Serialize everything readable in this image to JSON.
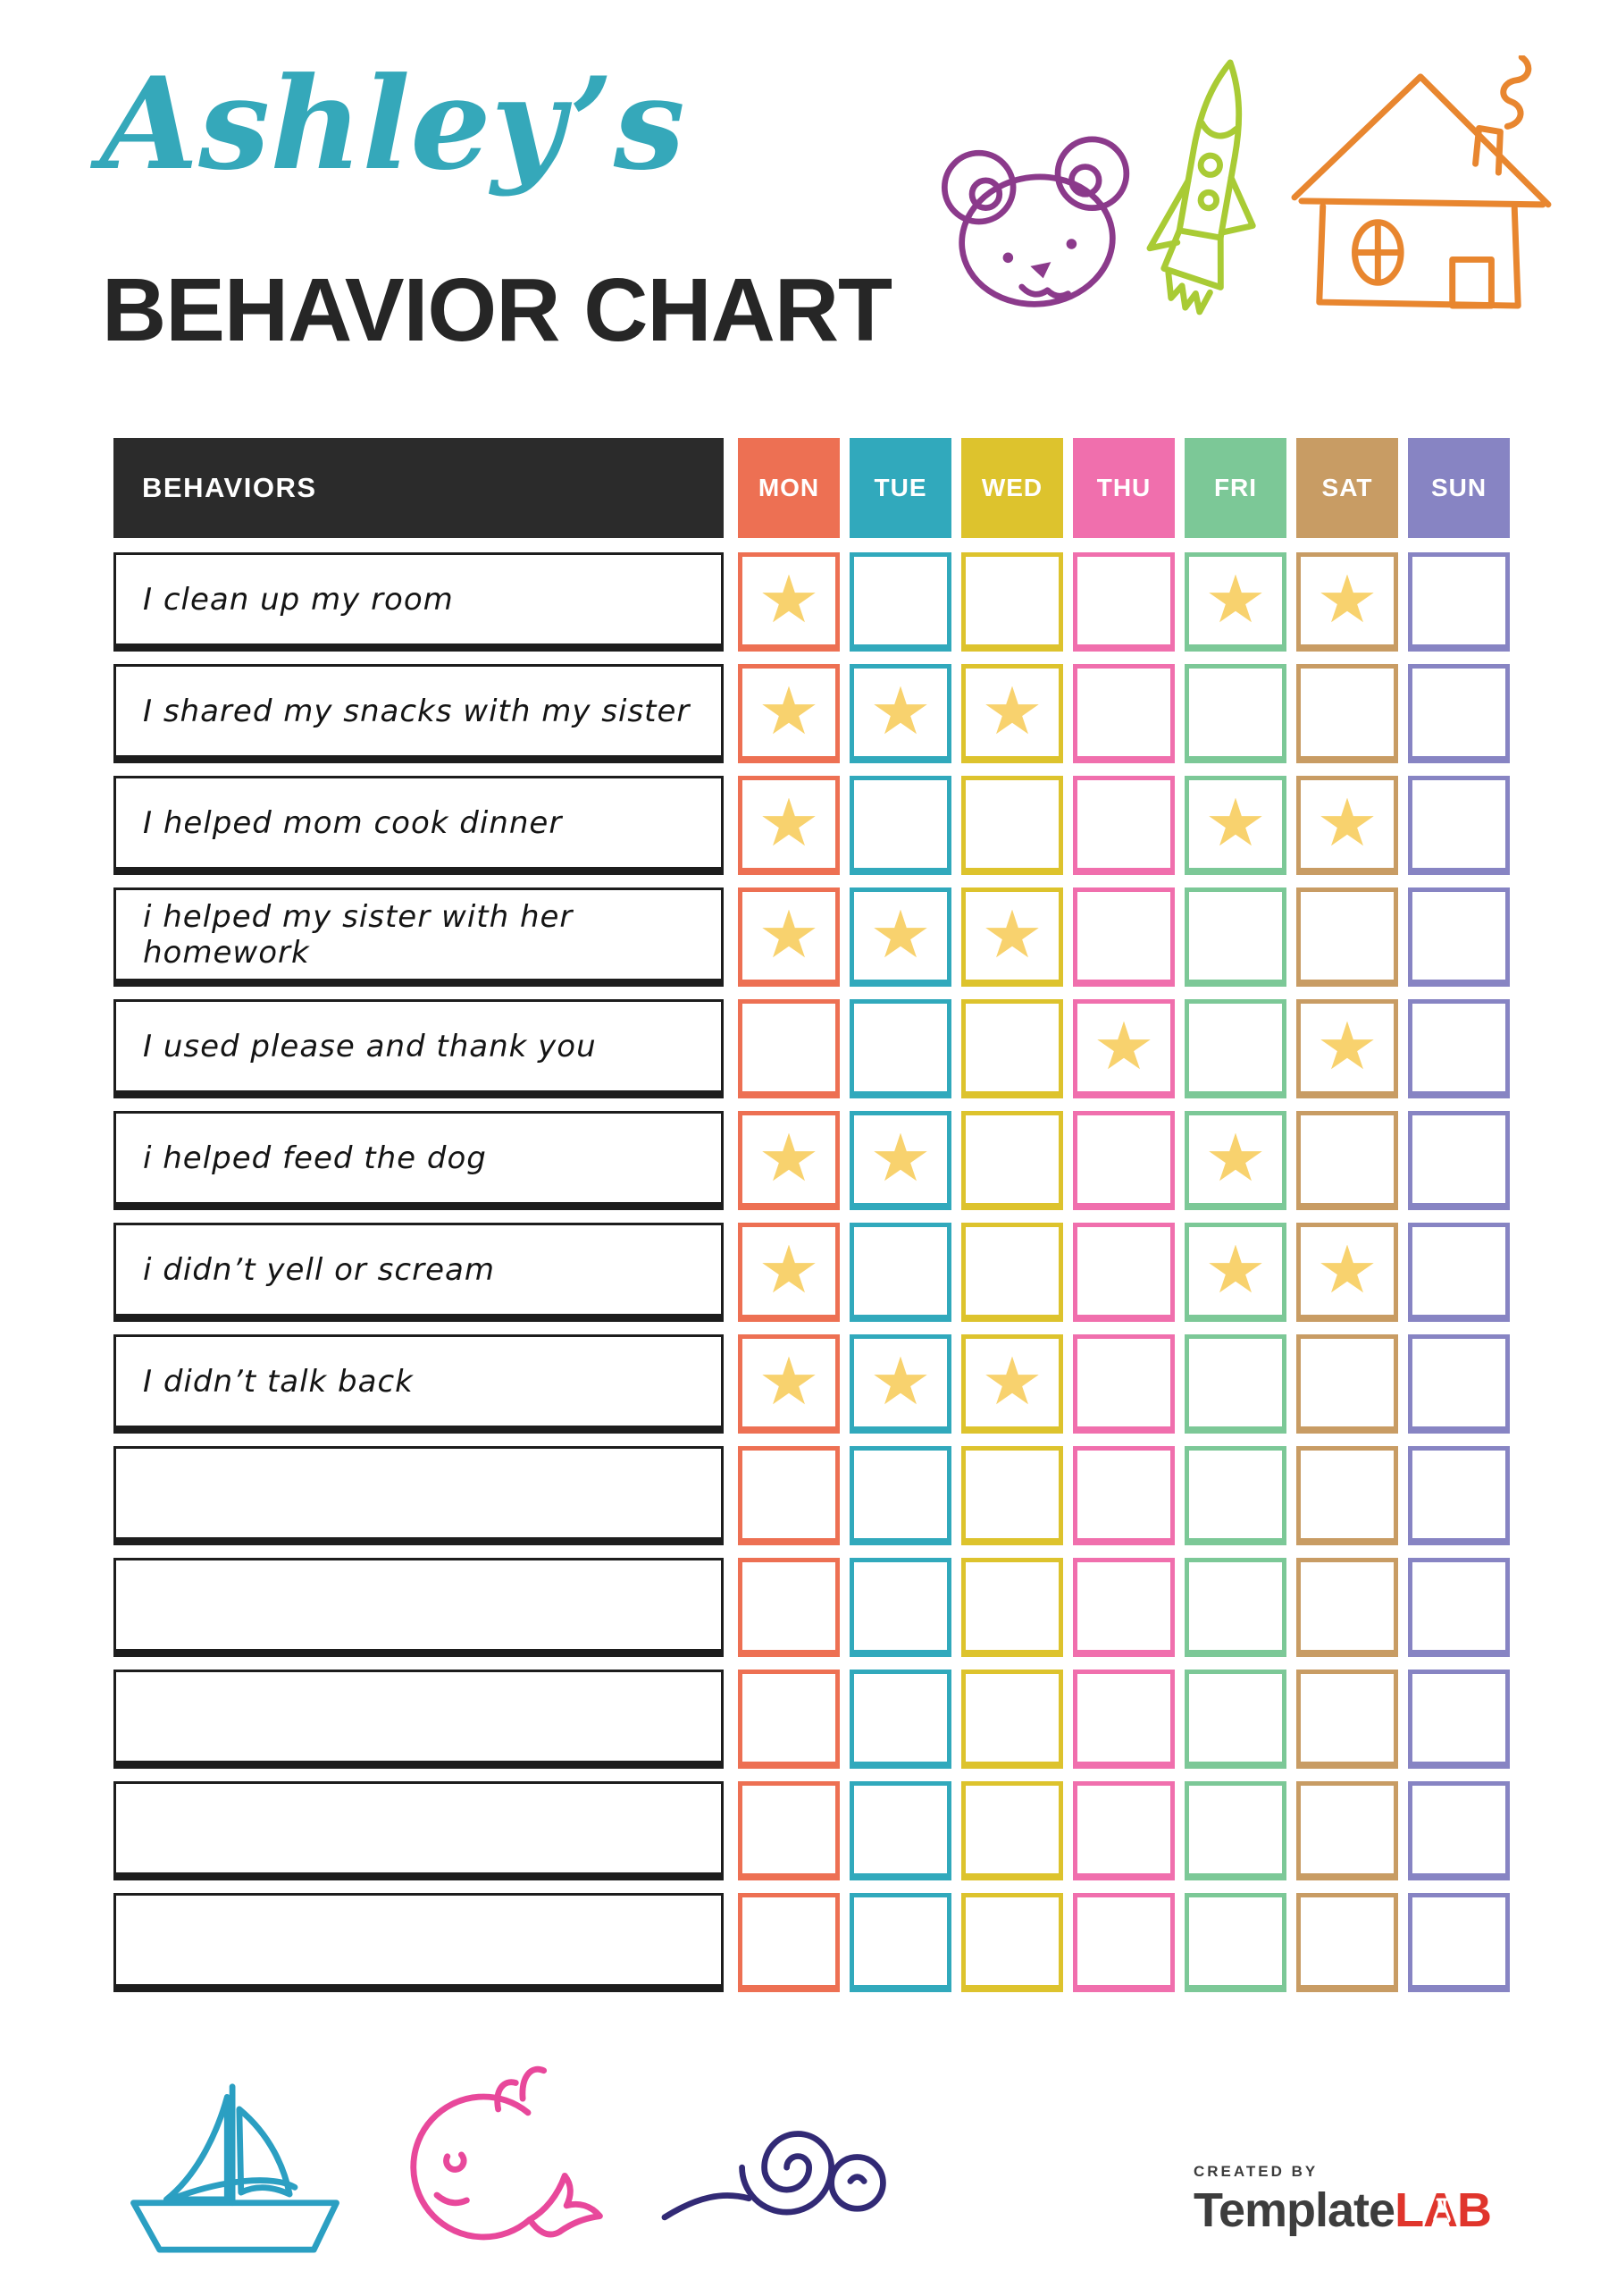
{
  "header": {
    "name": "Ashley’s",
    "name_color": "#35a8ba",
    "title": "BEHAVIOR CHART",
    "title_color": "#262626"
  },
  "table": {
    "behaviors_header": "BEHAVIORS",
    "behaviors_header_bg": "#2b2b2b",
    "star_color": "#f8d26e",
    "days": [
      {
        "label": "MON",
        "color": "#ed7053"
      },
      {
        "label": "TUE",
        "color": "#31a9bc"
      },
      {
        "label": "WED",
        "color": "#ddc32d"
      },
      {
        "label": "THU",
        "color": "#f06fad"
      },
      {
        "label": "FRI",
        "color": "#7cc897"
      },
      {
        "label": "SAT",
        "color": "#c89c64"
      },
      {
        "label": "SUN",
        "color": "#8784c3"
      }
    ],
    "rows": [
      {
        "behavior": "I clean up my room",
        "stars": [
          0,
          4,
          5
        ]
      },
      {
        "behavior": "I shared my snacks with my sister",
        "stars": [
          0,
          1,
          2
        ]
      },
      {
        "behavior": "I helped mom cook dinner",
        "stars": [
          0,
          4,
          5
        ]
      },
      {
        "behavior": "i helped my sister with her homework",
        "stars": [
          0,
          1,
          2
        ]
      },
      {
        "behavior": "I used please and thank you",
        "stars": [
          3,
          5
        ]
      },
      {
        "behavior": "i helped feed the dog",
        "stars": [
          0,
          1,
          4
        ]
      },
      {
        "behavior": "i didn’t yell or scream",
        "stars": [
          0,
          4,
          5
        ]
      },
      {
        "behavior": "I didn’t talk back",
        "stars": [
          0,
          1,
          2
        ]
      },
      {
        "behavior": "",
        "stars": []
      },
      {
        "behavior": "",
        "stars": []
      },
      {
        "behavior": "",
        "stars": []
      },
      {
        "behavior": "",
        "stars": []
      },
      {
        "behavior": "",
        "stars": []
      }
    ]
  },
  "decorations": {
    "top": [
      {
        "icon": "bear-doodle-icon",
        "color": "#8b3a8b"
      },
      {
        "icon": "rocket-doodle-icon",
        "color": "#a9cb35"
      },
      {
        "icon": "house-doodle-icon",
        "color": "#e8862f"
      }
    ],
    "bottom": [
      {
        "icon": "sailboat-doodle-icon",
        "color": "#2b9fc2"
      },
      {
        "icon": "whale-doodle-icon",
        "color": "#e8489b"
      },
      {
        "icon": "snail-doodle-icon",
        "color": "#322a75"
      }
    ]
  },
  "footer": {
    "created_by": "CREATED BY",
    "brand_primary": "Template",
    "brand_secondary": "LAB",
    "brand_primary_color": "#3d3d3d",
    "brand_secondary_color": "#e0352c"
  }
}
